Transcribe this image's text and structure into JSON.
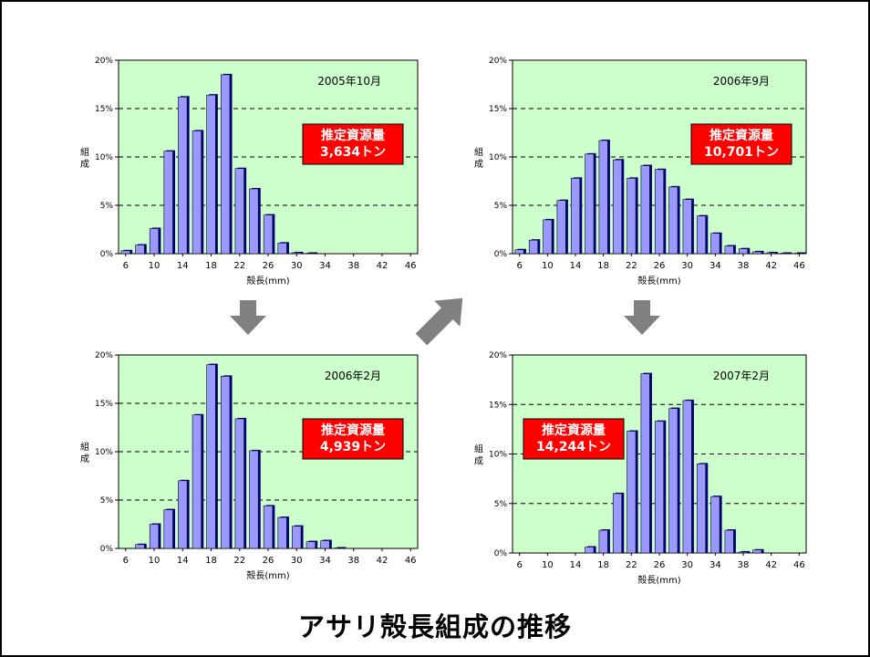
{
  "title": "アサリ殻長組成の推移",
  "colors": {
    "plot_bg": "#ccffcc",
    "bar": "#9999ff",
    "bar_shadow": "#000080",
    "badge": "#ff0000",
    "arrow": "#808080"
  },
  "chart_data": [
    {
      "type": "bar",
      "date_label": "2005年10月",
      "badge": [
        "推定資源量",
        "3,634トン"
      ],
      "ylabel": "組成",
      "xlabel": "殻長(mm)",
      "ylim": [
        0,
        20
      ],
      "y_ticks": [
        "0%",
        "5%",
        "10%",
        "15%",
        "20%"
      ],
      "x_ticks": [
        "6",
        "10",
        "14",
        "18",
        "22",
        "26",
        "30",
        "34",
        "38",
        "42",
        "46"
      ],
      "categories": [
        6,
        8,
        10,
        12,
        14,
        16,
        18,
        20,
        22,
        24,
        26,
        28,
        30,
        32,
        34,
        36,
        38,
        40,
        42,
        44,
        46
      ],
      "values": [
        0.3,
        0.9,
        2.6,
        10.6,
        16.2,
        12.7,
        16.4,
        18.5,
        8.8,
        6.7,
        4.0,
        1.1,
        0.1,
        0.05,
        0,
        0,
        0,
        0,
        0,
        0,
        0
      ],
      "grid": "dashed",
      "badge_position": "right"
    },
    {
      "type": "bar",
      "date_label": "2006年9月",
      "badge": [
        "推定資源量",
        "10,701トン"
      ],
      "ylabel": "組成",
      "xlabel": "殻長(mm)",
      "ylim": [
        0,
        20
      ],
      "y_ticks": [
        "0%",
        "5%",
        "10%",
        "15%",
        "20%"
      ],
      "x_ticks": [
        "6",
        "10",
        "14",
        "18",
        "22",
        "26",
        "30",
        "34",
        "38",
        "42",
        "46"
      ],
      "categories": [
        6,
        8,
        10,
        12,
        14,
        16,
        18,
        20,
        22,
        24,
        26,
        28,
        30,
        32,
        34,
        36,
        38,
        40,
        42,
        44,
        46
      ],
      "values": [
        0.4,
        1.4,
        3.5,
        5.5,
        7.8,
        10.3,
        11.7,
        9.7,
        7.8,
        9.1,
        8.7,
        6.9,
        5.6,
        3.9,
        2.1,
        0.8,
        0.5,
        0.2,
        0.1,
        0.05,
        0.05
      ],
      "grid": "dashed",
      "badge_position": "right"
    },
    {
      "type": "bar",
      "date_label": "2006年2月",
      "badge": [
        "推定資源量",
        "4,939トン"
      ],
      "ylabel": "組成",
      "xlabel": "殻長(mm)",
      "ylim": [
        0,
        20
      ],
      "y_ticks": [
        "0%",
        "5%",
        "10%",
        "15%",
        "20%"
      ],
      "x_ticks": [
        "6",
        "10",
        "14",
        "18",
        "22",
        "26",
        "30",
        "34",
        "38",
        "42",
        "46"
      ],
      "categories": [
        6,
        8,
        10,
        12,
        14,
        16,
        18,
        20,
        22,
        24,
        26,
        28,
        30,
        32,
        34,
        36,
        38,
        40,
        42,
        44,
        46
      ],
      "values": [
        0,
        0.4,
        2.5,
        4.0,
        7.0,
        13.8,
        19.0,
        17.8,
        13.4,
        10.1,
        4.4,
        3.2,
        2.3,
        0.7,
        0.8,
        0.05,
        0,
        0,
        0,
        0,
        0
      ],
      "grid": "dashed",
      "badge_position": "right"
    },
    {
      "type": "bar",
      "date_label": "2007年2月",
      "badge": [
        "推定資源量",
        "14,244トン"
      ],
      "ylabel": "組成",
      "xlabel": "殻長(mm)",
      "ylim": [
        0,
        20
      ],
      "y_ticks": [
        "0%",
        "5%",
        "10%",
        "15%",
        "20%"
      ],
      "x_ticks": [
        "6",
        "10",
        "14",
        "18",
        "22",
        "26",
        "30",
        "34",
        "38",
        "42",
        "46"
      ],
      "categories": [
        6,
        8,
        10,
        12,
        14,
        16,
        18,
        20,
        22,
        24,
        26,
        28,
        30,
        32,
        34,
        36,
        38,
        40,
        42,
        44,
        46
      ],
      "values": [
        0,
        0,
        0,
        0,
        0,
        0.6,
        2.3,
        6.0,
        12.3,
        18.1,
        13.3,
        14.6,
        15.4,
        9.0,
        5.7,
        2.3,
        0.1,
        0.3,
        0,
        0,
        0
      ],
      "grid": "dashed",
      "badge_position": "left"
    }
  ]
}
